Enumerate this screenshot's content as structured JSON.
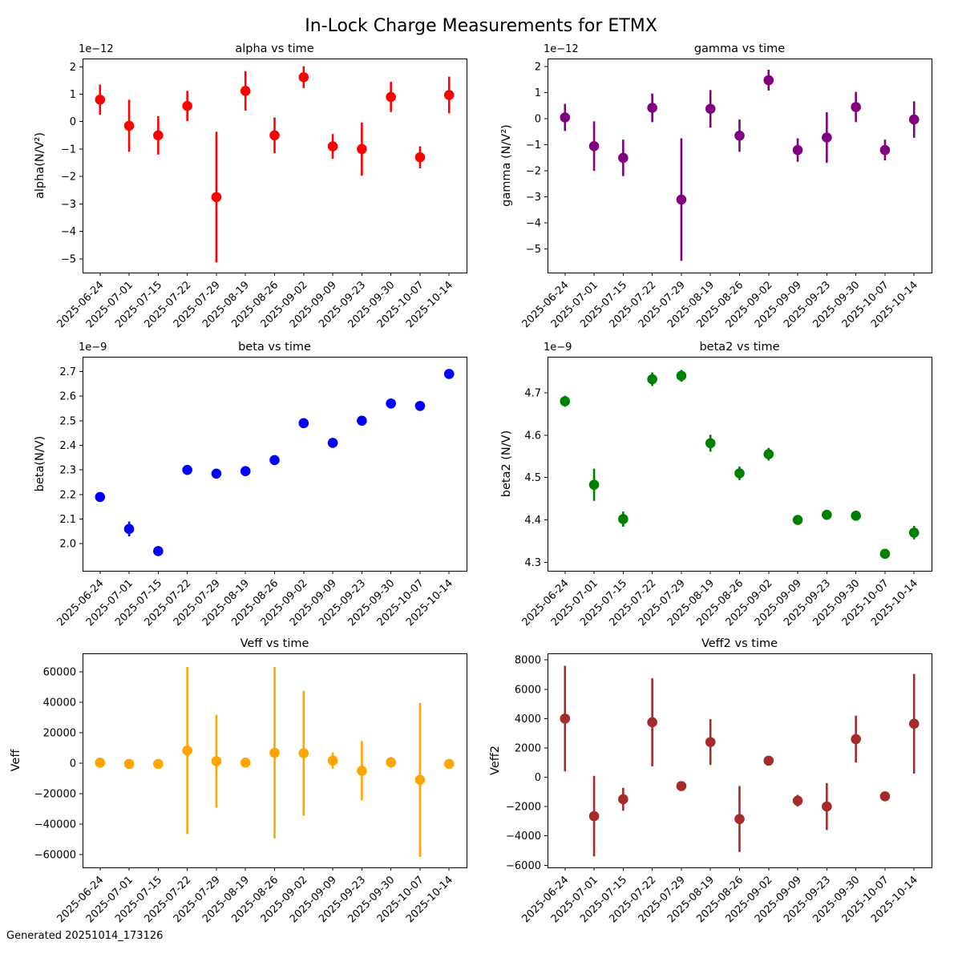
{
  "figure": {
    "title": "In-Lock Charge Measurements for ETMX",
    "footer": "Generated 20251014_173126"
  },
  "chart_data": {
    "type": "scatter",
    "marker": "circle-with-error-bars",
    "grid": false,
    "legend": "none",
    "categories": [
      "2025-06-24",
      "2025-07-01",
      "2025-07-15",
      "2025-07-22",
      "2025-07-29",
      "2025-08-19",
      "2025-08-26",
      "2025-09-02",
      "2025-09-09",
      "2025-09-23",
      "2025-09-30",
      "2025-10-07",
      "2025-10-14"
    ],
    "charts": [
      {
        "id": "alpha",
        "title": "alpha vs time",
        "ylabel": "alpha(N/V²)",
        "offset_text": "1e−12",
        "color": "#ff0000",
        "ylim": [
          -5.5,
          2.3
        ],
        "ytick_values": [
          2,
          1,
          0,
          -1,
          -2,
          -3,
          -4,
          -5
        ],
        "ytick_labels": [
          "2",
          "1",
          "0",
          "−1",
          "−2",
          "−3",
          "−4",
          "−5"
        ],
        "values": [
          0.8,
          -0.15,
          -0.5,
          0.57,
          -2.75,
          1.12,
          -0.5,
          1.62,
          -0.9,
          -1.0,
          0.9,
          -1.3,
          0.97
        ],
        "errors": [
          0.55,
          0.95,
          0.7,
          0.55,
          2.38,
          0.72,
          0.65,
          0.4,
          0.45,
          0.97,
          0.55,
          0.4,
          0.67
        ]
      },
      {
        "id": "gamma",
        "title": "gamma vs time",
        "ylabel": "gamma (N/V²)",
        "offset_text": "1e−12",
        "color": "#800080",
        "ylim": [
          -5.9,
          2.31
        ],
        "ytick_values": [
          2,
          1,
          0,
          -1,
          -2,
          -3,
          -4,
          -5
        ],
        "ytick_labels": [
          "2",
          "1",
          "0",
          "−1",
          "−2",
          "−3",
          "−4",
          "−5"
        ],
        "values": [
          0.05,
          -1.05,
          -1.5,
          0.42,
          -3.1,
          0.38,
          -0.65,
          1.48,
          -1.2,
          -0.72,
          0.45,
          -1.2,
          -0.03
        ],
        "errors": [
          0.52,
          0.95,
          0.7,
          0.55,
          2.35,
          0.72,
          0.62,
          0.4,
          0.45,
          0.97,
          0.58,
          0.4,
          0.7
        ]
      },
      {
        "id": "beta",
        "title": "beta vs time",
        "ylabel": "beta(N/V)",
        "offset_text": "1e−9",
        "color": "#0000ff",
        "ylim": [
          1.89,
          2.76
        ],
        "ytick_values": [
          2.0,
          2.1,
          2.2,
          2.3,
          2.4,
          2.5,
          2.6,
          2.7
        ],
        "ytick_labels": [
          "2.0",
          "2.1",
          "2.2",
          "2.3",
          "2.4",
          "2.5",
          "2.6",
          "2.7"
        ],
        "values": [
          2.19,
          2.06,
          1.97,
          2.3,
          2.285,
          2.295,
          2.34,
          2.49,
          2.41,
          2.5,
          2.57,
          2.56,
          2.69
        ],
        "errors": [
          0.012,
          0.03,
          0.02,
          0.015,
          0.012,
          0.015,
          0.012,
          0.008,
          0.008,
          0.008,
          0.008,
          0.008,
          0.012
        ]
      },
      {
        "id": "beta2",
        "title": "beta2 vs time",
        "ylabel": "beta2 (N/V)",
        "offset_text": "1e−9",
        "color": "#008000",
        "ylim": [
          4.28,
          4.785
        ],
        "ytick_values": [
          4.3,
          4.4,
          4.5,
          4.6,
          4.7
        ],
        "ytick_labels": [
          "4.3",
          "4.4",
          "4.5",
          "4.6",
          "4.7"
        ],
        "values": [
          4.68,
          4.483,
          4.402,
          4.732,
          4.74,
          4.581,
          4.51,
          4.555,
          4.4,
          4.412,
          4.41,
          4.32,
          4.37
        ],
        "errors": [
          0.013,
          0.038,
          0.018,
          0.016,
          0.014,
          0.02,
          0.016,
          0.015,
          0.01,
          0.008,
          0.012,
          0.01,
          0.016
        ]
      },
      {
        "id": "Veff",
        "title": "Veff vs time",
        "ylabel": "Veff",
        "offset_text": "",
        "color": "#ffa500",
        "ylim": [
          -68400,
          72000
        ],
        "ytick_values": [
          60000,
          40000,
          20000,
          0,
          -20000,
          -40000,
          -60000
        ],
        "ytick_labels": [
          "60000",
          "40000",
          "20000",
          "0",
          "−20000",
          "−40000",
          "−60000"
        ],
        "values": [
          300,
          -500,
          -500,
          8200,
          1300,
          300,
          6800,
          6500,
          1700,
          -5000,
          500,
          -11000,
          -500
        ],
        "errors": [
          900,
          700,
          700,
          54800,
          30500,
          900,
          56200,
          41000,
          5400,
          19500,
          3500,
          50500,
          1100
        ]
      },
      {
        "id": "Veff2",
        "title": "Veff2 vs time",
        "ylabel": "Veff2",
        "offset_text": "",
        "color": "#a52a2a",
        "ylim": [
          -6150,
          8450
        ],
        "ytick_values": [
          8000,
          6000,
          4000,
          2000,
          0,
          -2000,
          -4000,
          -6000
        ],
        "ytick_labels": [
          "8000",
          "6000",
          "4000",
          "2000",
          "0",
          "−2000",
          "−4000",
          "−6000"
        ],
        "values": [
          4000,
          -2650,
          -1500,
          3750,
          -600,
          2400,
          -2850,
          1130,
          -1600,
          -2000,
          2600,
          -1300,
          3650
        ],
        "errors": [
          3600,
          2750,
          780,
          3000,
          300,
          1560,
          2250,
          150,
          400,
          1600,
          1600,
          150,
          3400
        ]
      }
    ]
  }
}
